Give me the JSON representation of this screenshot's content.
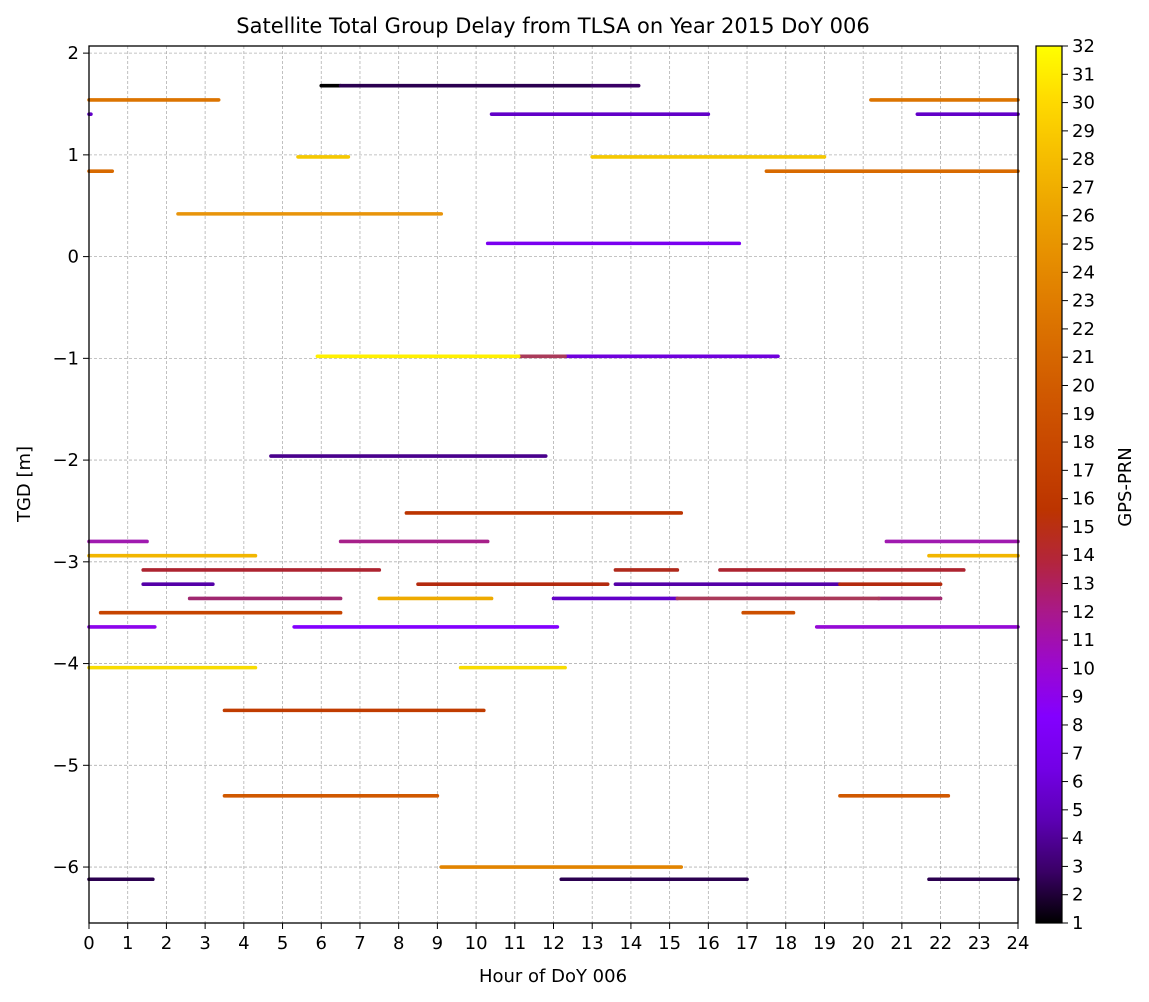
{
  "chart_data": {
    "type": "line",
    "title": "Satellite Total Group Delay from TLSA on Year 2015 DoY 006",
    "xlabel": "Hour of DoY 006",
    "ylabel": "TGD [m]",
    "xlim": [
      0,
      24
    ],
    "ylim": [
      -6.55,
      2.07
    ],
    "xticks": [
      0,
      1,
      2,
      3,
      4,
      5,
      6,
      7,
      8,
      9,
      10,
      11,
      12,
      13,
      14,
      15,
      16,
      17,
      18,
      19,
      20,
      21,
      22,
      23,
      24
    ],
    "xtick_labels": [
      "0",
      "1",
      "2",
      "3",
      "4",
      "5",
      "6",
      "7",
      "8",
      "9",
      "10",
      "11",
      "12",
      "13",
      "14",
      "15",
      "16",
      "17",
      "18",
      "19",
      "20",
      "21",
      "22",
      "23",
      "24"
    ],
    "yticks": [
      2,
      1,
      0,
      -1,
      -2,
      -3,
      -4,
      -5,
      -6
    ],
    "ytick_labels": [
      "2",
      "1",
      "0",
      "−1",
      "−2",
      "−3",
      "−4",
      "−5",
      "−6"
    ],
    "grid": true,
    "colorbar": {
      "label": "GPS-PRN",
      "min": 1,
      "max": 32,
      "ticks": [
        "1",
        "2",
        "3",
        "4",
        "5",
        "6",
        "7",
        "8",
        "9",
        "10",
        "11",
        "12",
        "13",
        "14",
        "15",
        "16",
        "17",
        "18",
        "19",
        "20",
        "21",
        "22",
        "23",
        "24",
        "25",
        "26",
        "27",
        "28",
        "29",
        "30",
        "31",
        "32"
      ],
      "colormap": "gnuplot",
      "stops": [
        "#000000",
        "#3a0066",
        "#5c00b4",
        "#7300e6",
        "#8300ff",
        "#9b08cf",
        "#a9188c",
        "#b3253c",
        "#bc3400",
        "#c64400",
        "#ce5400",
        "#d66700",
        "#df7b00",
        "#e79100",
        "#eea800",
        "#f7c100",
        "#ffdc00",
        "#ffff00"
      ]
    },
    "series": [
      {
        "prn": 1,
        "color": "#000000",
        "segments": [
          [
            6.0,
            6.5,
            1.68
          ]
        ]
      },
      {
        "prn": 2,
        "color": "#2b0050",
        "segments": [
          [
            6.5,
            13.0,
            1.68
          ],
          [
            21.7,
            24.0,
            -6.12
          ],
          [
            0.0,
            1.65,
            -6.12
          ],
          [
            12.2,
            17.0,
            -6.12
          ]
        ]
      },
      {
        "prn": 3,
        "color": "#3a0066",
        "segments": [
          [
            13.0,
            14.2,
            1.68
          ]
        ]
      },
      {
        "prn": 4,
        "color": "#49008c",
        "segments": [
          [
            4.7,
            11.8,
            -1.96
          ]
        ]
      },
      {
        "prn": 5,
        "color": "#5500a8",
        "segments": [
          [
            1.4,
            3.2,
            -3.22
          ],
          [
            13.6,
            19.4,
            -3.22
          ]
        ]
      },
      {
        "prn": 6,
        "color": "#6200c8",
        "segments": [
          [
            10.4,
            16.0,
            1.4
          ],
          [
            21.4,
            24.0,
            1.4
          ],
          [
            -0.05,
            0.05,
            1.4
          ],
          [
            12.0,
            15.2,
            -3.36
          ]
        ]
      },
      {
        "prn": 7,
        "color": "#6f00dc",
        "segments": [
          [
            12.3,
            17.8,
            -0.98
          ]
        ]
      },
      {
        "prn": 8,
        "color": "#7a00f0",
        "segments": [
          [
            10.3,
            16.8,
            0.13
          ]
        ]
      },
      {
        "prn": 9,
        "color": "#8300ff",
        "segments": [
          [
            5.3,
            12.1,
            -3.64
          ]
        ]
      },
      {
        "prn": 10,
        "color": "#8d04ec",
        "segments": [
          [
            0.0,
            1.7,
            -3.64
          ]
        ]
      },
      {
        "prn": 11,
        "color": "#950ad6",
        "segments": [
          [
            18.8,
            24.0,
            -3.64
          ]
        ]
      },
      {
        "prn": 12,
        "color": "#a01ab0",
        "segments": [
          [
            20.6,
            24.0,
            -2.8
          ],
          [
            0.0,
            1.5,
            -2.8
          ]
        ]
      },
      {
        "prn": 13,
        "color": "#a7208a",
        "segments": [
          [
            6.5,
            10.3,
            -2.8
          ]
        ]
      },
      {
        "prn": 14,
        "color": "#a02870",
        "segments": [
          [
            2.6,
            6.5,
            -3.36
          ],
          [
            20.4,
            22.0,
            -3.36
          ]
        ]
      },
      {
        "prn": 15,
        "color": "#aa3a5a",
        "segments": [
          [
            11.1,
            12.3,
            -0.98
          ],
          [
            15.2,
            20.4,
            -3.36
          ]
        ]
      },
      {
        "prn": 16,
        "color": "#ad2430",
        "segments": [
          [
            1.4,
            7.5,
            -3.08
          ],
          [
            16.3,
            22.6,
            -3.08
          ]
        ]
      },
      {
        "prn": 17,
        "color": "#b02a1c",
        "segments": [
          [
            13.6,
            15.2,
            -3.08
          ]
        ]
      },
      {
        "prn": 18,
        "color": "#b42a0e",
        "segments": [
          [
            8.5,
            13.4,
            -3.22
          ],
          [
            19.4,
            22.0,
            -3.22
          ]
        ]
      },
      {
        "prn": 19,
        "color": "#bb3400",
        "segments": [
          [
            8.2,
            15.3,
            -2.52
          ]
        ]
      },
      {
        "prn": 20,
        "color": "#c03c00",
        "segments": [
          [
            3.5,
            10.2,
            -4.46
          ]
        ]
      },
      {
        "prn": 21,
        "color": "#c64400",
        "segments": [
          [
            0.3,
            6.5,
            -3.5
          ]
        ]
      },
      {
        "prn": 22,
        "color": "#cc4f00",
        "segments": [
          [
            16.9,
            18.2,
            -3.5
          ]
        ]
      },
      {
        "prn": 23,
        "color": "#d05800",
        "segments": [
          [
            3.5,
            9.0,
            -5.3
          ],
          [
            19.4,
            22.2,
            -5.3
          ]
        ]
      },
      {
        "prn": 24,
        "color": "#d86a00",
        "segments": [
          [
            17.5,
            24.0,
            0.84
          ],
          [
            0.0,
            0.6,
            0.84
          ]
        ]
      },
      {
        "prn": 25,
        "color": "#dc7400",
        "segments": [
          [
            20.2,
            24.0,
            1.54
          ],
          [
            0.0,
            3.35,
            1.54
          ]
        ]
      },
      {
        "prn": 26,
        "color": "#e28400",
        "segments": [
          [
            9.1,
            15.3,
            -6.0
          ]
        ]
      },
      {
        "prn": 27,
        "color": "#e8940a",
        "segments": [
          [
            2.3,
            9.1,
            0.42
          ]
        ]
      },
      {
        "prn": 28,
        "color": "#eeaa00",
        "segments": [
          [
            7.5,
            10.4,
            -3.36
          ]
        ]
      },
      {
        "prn": 29,
        "color": "#f2b600",
        "segments": [
          [
            0.0,
            4.3,
            -2.94
          ],
          [
            21.7,
            24.0,
            -2.94
          ]
        ]
      },
      {
        "prn": 30,
        "color": "#f5c800",
        "segments": [
          [
            5.4,
            6.7,
            0.98
          ],
          [
            13.0,
            19.0,
            0.98
          ]
        ]
      },
      {
        "prn": 31,
        "color": "#f8dc00",
        "segments": [
          [
            0.0,
            4.3,
            -4.04
          ],
          [
            9.6,
            12.3,
            -4.04
          ]
        ]
      },
      {
        "prn": 32,
        "color": "#fff000",
        "segments": [
          [
            5.9,
            11.1,
            -0.98
          ]
        ]
      }
    ]
  }
}
